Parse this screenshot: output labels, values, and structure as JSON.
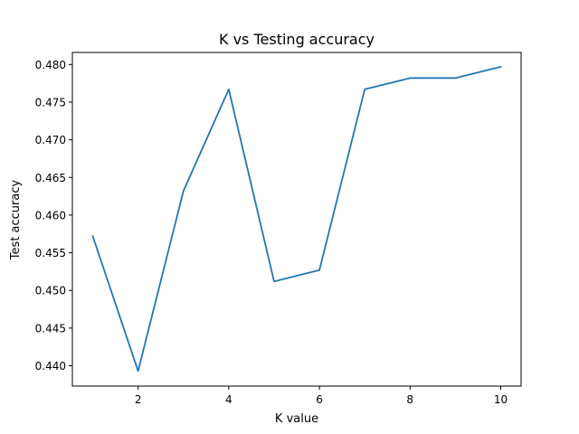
{
  "chart_data": {
    "type": "line",
    "title": "K vs Testing accuracy",
    "xlabel": "K value",
    "ylabel": "Test accuracy",
    "xlim": [
      0.55,
      10.45
    ],
    "ylim": [
      0.4373,
      0.4816
    ],
    "xticks": [
      2,
      4,
      6,
      8,
      10
    ],
    "yticks": [
      0.44,
      0.445,
      0.45,
      0.455,
      0.46,
      0.465,
      0.47,
      0.475,
      0.48
    ],
    "xtick_labels": [
      "2",
      "4",
      "6",
      "8",
      "10"
    ],
    "ytick_labels": [
      "0.440",
      "0.445",
      "0.450",
      "0.455",
      "0.460",
      "0.465",
      "0.470",
      "0.475",
      "0.480"
    ],
    "grid": false,
    "series": [
      {
        "color": "#1f77b4",
        "x": [
          1,
          2,
          3,
          4,
          5,
          6,
          7,
          8,
          9,
          10
        ],
        "y": [
          0.4572,
          0.4393,
          0.4632,
          0.4767,
          0.4512,
          0.4527,
          0.4767,
          0.4782,
          0.4782,
          0.4797
        ]
      }
    ]
  }
}
